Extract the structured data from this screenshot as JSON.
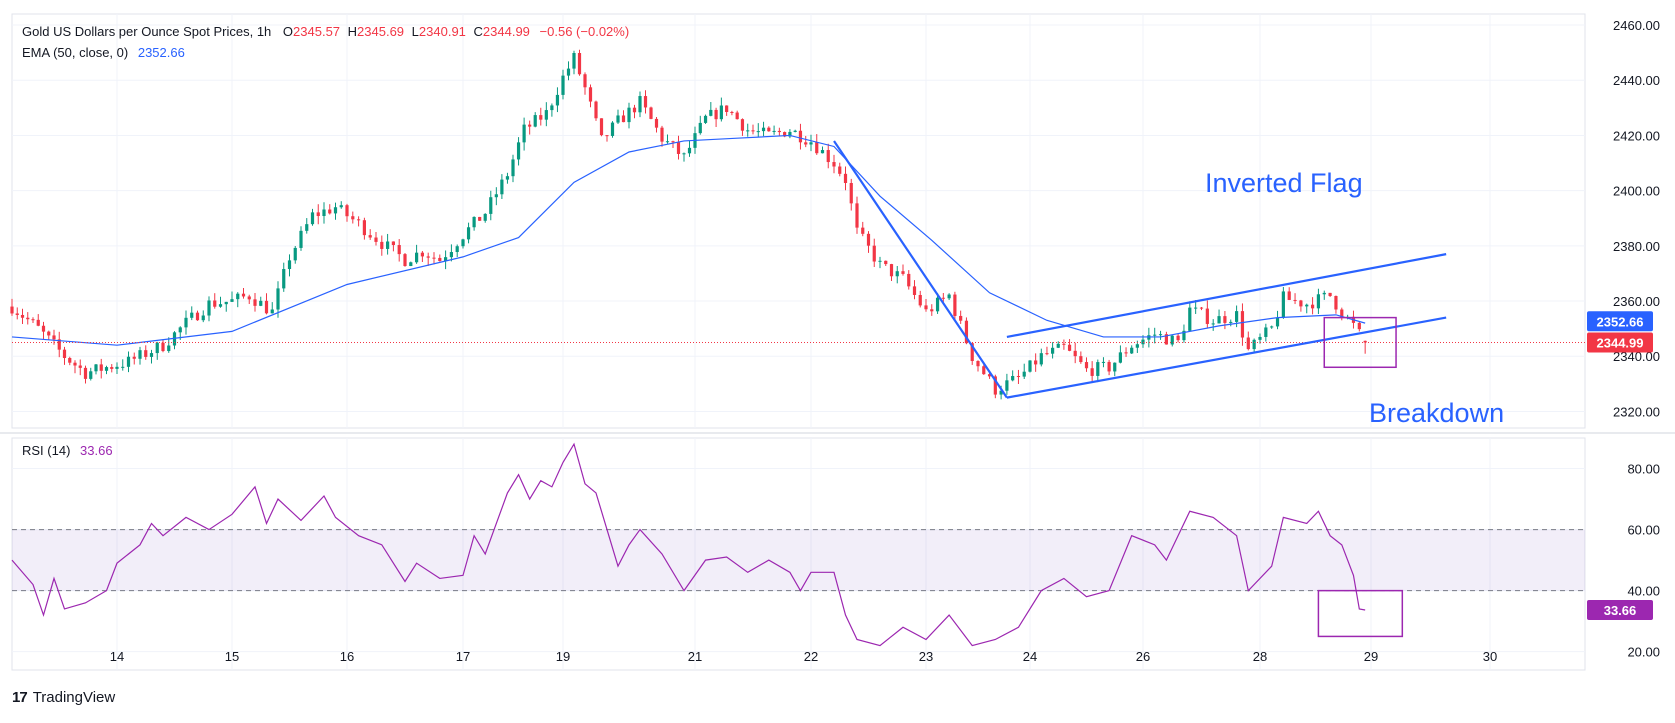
{
  "header": {
    "symbol": "Gold US Dollars per Ounce Spot Prices, 1h",
    "open_label": "O",
    "open": "2345.57",
    "high_label": "H",
    "high": "2345.69",
    "low_label": "L",
    "low": "2340.91",
    "close_label": "C",
    "close": "2344.99",
    "change": "−0.56 (−0.02%)",
    "ema_label": "EMA (50, close, 0)",
    "ema_value": "2352.66",
    "rsi_label": "RSI (14)",
    "rsi_value": "33.66"
  },
  "footer": {
    "brand": "TradingView",
    "logo": "17"
  },
  "colors": {
    "up": "#089981",
    "down": "#f23645",
    "ema": "#2962ff",
    "rsi": "#9c27b0",
    "annotation": "#2962ff",
    "box": "#9c27b0",
    "ema_tag": "#2962ff",
    "close_tag": "#f23645"
  },
  "chart_data": [
    {
      "type": "candlestick",
      "title": "Gold US Dollars per Ounce Spot Prices, 1h",
      "x_tick_labels": [
        "14",
        "15",
        "16",
        "17",
        "19",
        "21",
        "22",
        "23",
        "24",
        "26",
        "28",
        "29",
        "30"
      ],
      "y_ticks": [
        2320,
        2340,
        2360,
        2380,
        2400,
        2420,
        2440,
        2460
      ],
      "ylim": [
        2314,
        2464
      ],
      "last_price": 2344.99,
      "ema_last": 2352.66,
      "price_path": [
        [
          0,
          2358
        ],
        [
          5,
          2350
        ],
        [
          10,
          2340
        ],
        [
          14,
          2334
        ],
        [
          18,
          2336
        ],
        [
          22,
          2338
        ],
        [
          28,
          2344
        ],
        [
          32,
          2352
        ],
        [
          36,
          2359
        ],
        [
          40,
          2360
        ],
        [
          43,
          2362
        ],
        [
          47,
          2356
        ],
        [
          50,
          2376
        ],
        [
          54,
          2391
        ],
        [
          58,
          2394
        ],
        [
          62,
          2388
        ],
        [
          66,
          2381
        ],
        [
          70,
          2375
        ],
        [
          73,
          2378
        ],
        [
          76,
          2375
        ],
        [
          80,
          2384
        ],
        [
          84,
          2392
        ],
        [
          88,
          2406
        ],
        [
          91,
          2422
        ],
        [
          95,
          2428
        ],
        [
          98,
          2441
        ],
        [
          100,
          2448
        ],
        [
          102,
          2437
        ],
        [
          105,
          2418
        ],
        [
          108,
          2425
        ],
        [
          112,
          2432
        ],
        [
          116,
          2419
        ],
        [
          120,
          2412
        ],
        [
          124,
          2426
        ],
        [
          128,
          2430
        ],
        [
          132,
          2422
        ],
        [
          136,
          2420
        ],
        [
          140,
          2422
        ],
        [
          144,
          2418
        ],
        [
          148,
          2410
        ],
        [
          150,
          2404
        ],
        [
          152,
          2385
        ],
        [
          156,
          2373
        ],
        [
          160,
          2368
        ],
        [
          164,
          2356
        ],
        [
          168,
          2362
        ],
        [
          172,
          2340
        ],
        [
          176,
          2328
        ],
        [
          180,
          2332
        ],
        [
          184,
          2340
        ],
        [
          188,
          2343
        ],
        [
          192,
          2335
        ],
        [
          196,
          2336
        ],
        [
          200,
          2344
        ],
        [
          204,
          2348
        ],
        [
          208,
          2345
        ],
        [
          210,
          2357
        ],
        [
          214,
          2353
        ],
        [
          218,
          2355
        ],
        [
          220,
          2342
        ],
        [
          224,
          2350
        ],
        [
          226,
          2361
        ],
        [
          230,
          2359
        ],
        [
          234,
          2362
        ],
        [
          236,
          2356
        ],
        [
          238,
          2351
        ],
        [
          240,
          2345
        ]
      ],
      "ema_path": [
        [
          0,
          2347
        ],
        [
          20,
          2344
        ],
        [
          40,
          2349
        ],
        [
          60,
          2366
        ],
        [
          80,
          2376
        ],
        [
          90,
          2383
        ],
        [
          100,
          2403
        ],
        [
          110,
          2414
        ],
        [
          120,
          2418
        ],
        [
          130,
          2419
        ],
        [
          140,
          2420
        ],
        [
          148,
          2416
        ],
        [
          156,
          2398
        ],
        [
          165,
          2382
        ],
        [
          175,
          2363
        ],
        [
          185,
          2353
        ],
        [
          195,
          2347
        ],
        [
          205,
          2347
        ],
        [
          215,
          2351
        ],
        [
          225,
          2354
        ],
        [
          235,
          2355
        ],
        [
          240,
          2352
        ]
      ],
      "annotations": {
        "title_1": "Inverted Flag",
        "title_2": "Breakdown",
        "pole": [
          [
            148,
            2418
          ],
          [
            178,
            2325
          ]
        ],
        "channel_upper": [
          [
            178,
            2347
          ],
          [
            253,
            2377
          ]
        ],
        "channel_lower": [
          [
            178,
            2325
          ],
          [
            253,
            2354
          ]
        ],
        "box": {
          "t0": 233,
          "t1": 245,
          "p0": 2336,
          "p1": 2354
        }
      }
    },
    {
      "type": "line",
      "title": "RSI (14)",
      "y_ticks": [
        20,
        40,
        60,
        80
      ],
      "ylim": [
        14,
        90
      ],
      "band": [
        40,
        60
      ],
      "last_value": 33.66,
      "rsi_path": [
        [
          0,
          50
        ],
        [
          4,
          42
        ],
        [
          6,
          32
        ],
        [
          8,
          44
        ],
        [
          10,
          34
        ],
        [
          14,
          36
        ],
        [
          18,
          40
        ],
        [
          20,
          49
        ],
        [
          24,
          55
        ],
        [
          26,
          62
        ],
        [
          28,
          58
        ],
        [
          32,
          64
        ],
        [
          36,
          60
        ],
        [
          40,
          65
        ],
        [
          44,
          74
        ],
        [
          46,
          62
        ],
        [
          48,
          70
        ],
        [
          52,
          63
        ],
        [
          56,
          71
        ],
        [
          58,
          64
        ],
        [
          62,
          58
        ],
        [
          66,
          55
        ],
        [
          70,
          43
        ],
        [
          72,
          49
        ],
        [
          76,
          44
        ],
        [
          80,
          45
        ],
        [
          82,
          58
        ],
        [
          84,
          52
        ],
        [
          86,
          62
        ],
        [
          88,
          72
        ],
        [
          90,
          78
        ],
        [
          92,
          70
        ],
        [
          94,
          76
        ],
        [
          96,
          74
        ],
        [
          98,
          82
        ],
        [
          100,
          88
        ],
        [
          102,
          75
        ],
        [
          104,
          72
        ],
        [
          106,
          60
        ],
        [
          108,
          48
        ],
        [
          110,
          55
        ],
        [
          112,
          60
        ],
        [
          116,
          52
        ],
        [
          120,
          40
        ],
        [
          124,
          50
        ],
        [
          128,
          51
        ],
        [
          132,
          46
        ],
        [
          136,
          50
        ],
        [
          140,
          46
        ],
        [
          142,
          40
        ],
        [
          144,
          46
        ],
        [
          148,
          46
        ],
        [
          150,
          32
        ],
        [
          152,
          24
        ],
        [
          156,
          22
        ],
        [
          160,
          28
        ],
        [
          164,
          24
        ],
        [
          168,
          32
        ],
        [
          172,
          22
        ],
        [
          176,
          24
        ],
        [
          180,
          28
        ],
        [
          184,
          40
        ],
        [
          188,
          44
        ],
        [
          192,
          38
        ],
        [
          196,
          40
        ],
        [
          200,
          58
        ],
        [
          204,
          55
        ],
        [
          206,
          50
        ],
        [
          210,
          66
        ],
        [
          214,
          64
        ],
        [
          218,
          58
        ],
        [
          220,
          40
        ],
        [
          224,
          48
        ],
        [
          226,
          64
        ],
        [
          230,
          62
        ],
        [
          232,
          66
        ],
        [
          234,
          58
        ],
        [
          236,
          55
        ],
        [
          238,
          45
        ],
        [
          239,
          34
        ],
        [
          240,
          33.66
        ]
      ],
      "box": {
        "t0": 232,
        "t1": 246,
        "v0": 25,
        "v1": 40
      }
    }
  ]
}
